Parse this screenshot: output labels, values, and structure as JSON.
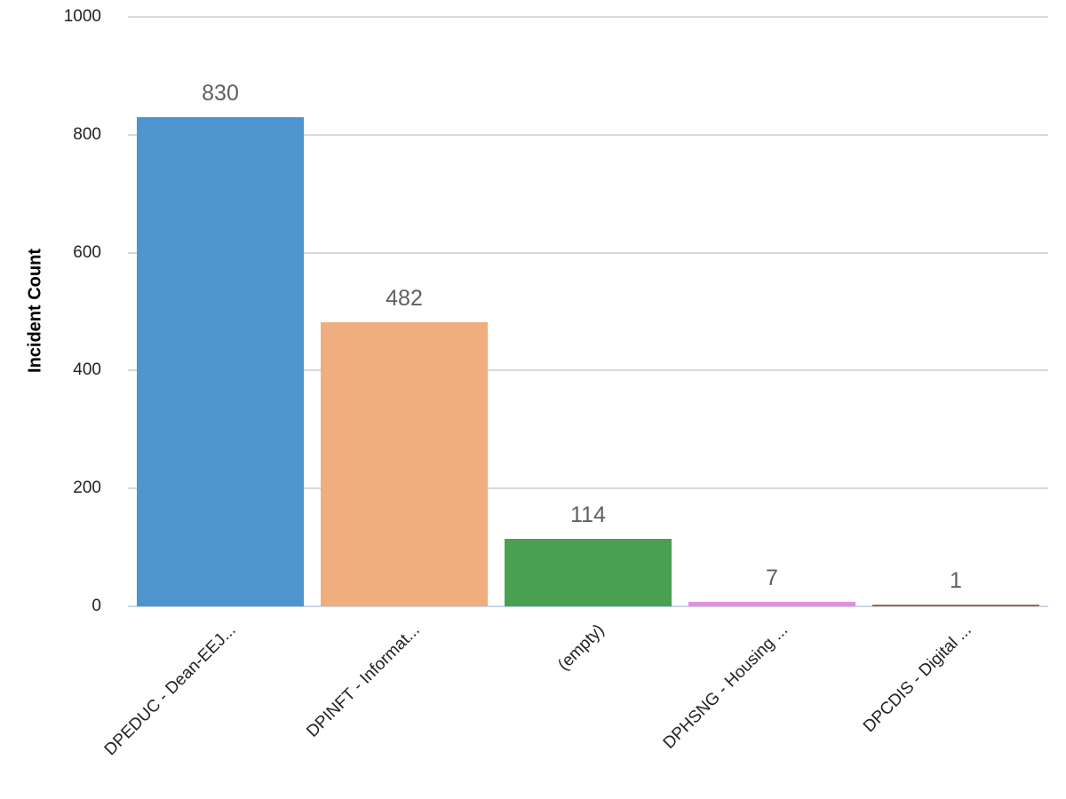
{
  "chart_data": {
    "type": "bar",
    "title": "",
    "xlabel": "",
    "ylabel": "Incident Count",
    "ylim": [
      0,
      1000
    ],
    "yticks": [
      0,
      200,
      400,
      600,
      800,
      1000
    ],
    "grid": true,
    "legend": "none",
    "categories": [
      "DPEDUC - Dean-EEJ...",
      "DPINFT - Informat...",
      "(empty)",
      "DPHSNG - Housing ...",
      "DPCDIS - Digital ..."
    ],
    "values": [
      830,
      482,
      114,
      7,
      1
    ],
    "colors": [
      "#4e94cf",
      "#f0ad7e",
      "#48a050",
      "#e38fe0",
      "#a86a4e"
    ],
    "data_labels": [
      "830",
      "482",
      "114",
      "7",
      "1"
    ]
  }
}
